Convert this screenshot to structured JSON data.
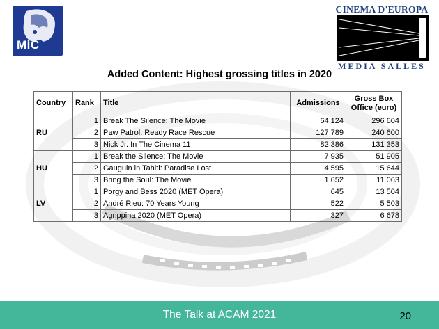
{
  "logos": {
    "mic": "MiC",
    "cinema_top": "CINEMA D'EUROPA",
    "cinema_bottom": "MEDIA SALLES"
  },
  "title": "Added Content: Highest grossing titles in 2020",
  "table": {
    "headers": {
      "country": "Country",
      "rank": "Rank",
      "title": "Title",
      "admissions": "Admissions",
      "gross_line1": "Gross Box",
      "gross_line2": "Office (euro)"
    },
    "groups": [
      {
        "country": "RU",
        "rows": [
          {
            "rank": "1",
            "title": "Break The Silence: The Movie",
            "admissions": "64 124",
            "gross": "296 604"
          },
          {
            "rank": "2",
            "title": "Paw Patrol: Ready Race Rescue",
            "admissions": "127 789",
            "gross": "240 600"
          },
          {
            "rank": "3",
            "title": "Nick Jr. In The Cinema 11",
            "admissions": "82 386",
            "gross": "131 353"
          }
        ]
      },
      {
        "country": "HU",
        "rows": [
          {
            "rank": "1",
            "title": "Break the Silence: The Movie",
            "admissions": "7 935",
            "gross": "51 905"
          },
          {
            "rank": "2",
            "title": "Gauguin in Tahiti: Paradise Lost",
            "admissions": "4 595",
            "gross": "15 644"
          },
          {
            "rank": "3",
            "title": "Bring the Soul: The Movie",
            "admissions": "1 652",
            "gross": "11 063"
          }
        ]
      },
      {
        "country": "LV",
        "rows": [
          {
            "rank": "1",
            "title": "Porgy and Bess 2020 (MET Opera)",
            "admissions": "645",
            "gross": "13 504"
          },
          {
            "rank": "2",
            "title": "André Rieu: 70 Years Young",
            "admissions": "522",
            "gross": "5 503"
          },
          {
            "rank": "3",
            "title": "Agrippina 2020 (MET Opera)",
            "admissions": "327",
            "gross": "6 678"
          }
        ]
      }
    ]
  },
  "footer": {
    "text": "The Talk at ACAM 2021",
    "page": "20"
  },
  "colors": {
    "footer_bg": "#44b79a",
    "logo_blue": "#1f3a93",
    "cinema_blue": "#1f3f7a"
  }
}
